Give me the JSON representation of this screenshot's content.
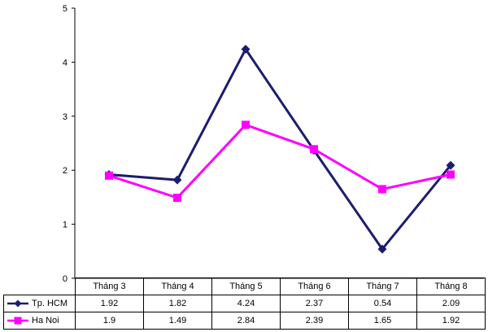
{
  "chart_data": {
    "type": "line",
    "categories": [
      "Tháng 3",
      "Tháng 4",
      "Tháng 5",
      "Tháng 6",
      "Tháng 7",
      "Tháng 8"
    ],
    "series": [
      {
        "name": "Tp. HCM",
        "color": "#1c1c6e",
        "marker": "diamond",
        "values": [
          1.92,
          1.82,
          4.24,
          2.37,
          0.54,
          2.09
        ],
        "labels": [
          "1.92",
          "1.82",
          "4.24",
          "2.37",
          "0.54",
          "2.09"
        ]
      },
      {
        "name": "Ha Noi",
        "color": "#ff00ff",
        "marker": "square",
        "values": [
          1.9,
          1.49,
          2.84,
          2.39,
          1.65,
          1.92
        ],
        "labels": [
          "1.9",
          "1.49",
          "2.84",
          "2.39",
          "1.65",
          "1.92"
        ]
      }
    ],
    "ylim": [
      0,
      5
    ],
    "yticks": [
      0,
      1,
      2,
      3,
      4,
      5
    ],
    "ytick_labels": [
      "0",
      "1",
      "2",
      "3",
      "4",
      "5"
    ],
    "grid": false,
    "legend_placement": "bottom-left, inside data table"
  }
}
